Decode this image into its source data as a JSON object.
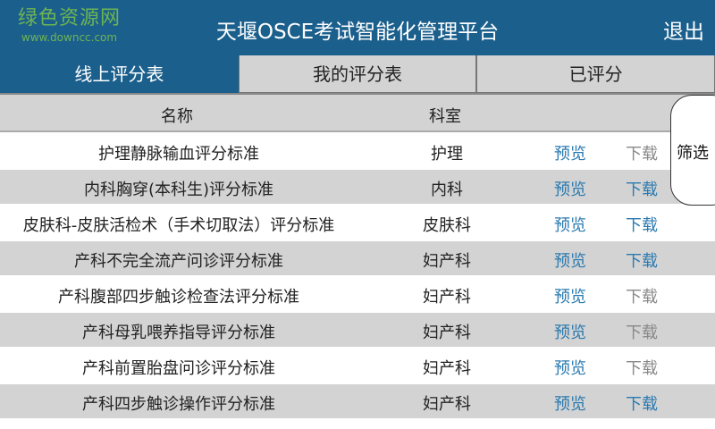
{
  "header": {
    "title": "天堰OSCE考试智能化管理平台",
    "logout": "退出"
  },
  "tabs": [
    {
      "label": "线上评分表",
      "active": true
    },
    {
      "label": "我的评分表",
      "active": false
    },
    {
      "label": "已评分",
      "active": false
    }
  ],
  "columns": {
    "name": "名称",
    "dept": "科室"
  },
  "rows": [
    {
      "name": "护理静脉输血评分标准",
      "dept": "护理",
      "preview": "预览",
      "download": "下载",
      "download_enabled": false
    },
    {
      "name": "内科胸穿(本科生)评分标准",
      "dept": "内科",
      "preview": "预览",
      "download": "下载",
      "download_enabled": true
    },
    {
      "name": "皮肤科-皮肤活检术（手术切取法）评分标准",
      "dept": "皮肤科",
      "preview": "预览",
      "download": "下载",
      "download_enabled": true
    },
    {
      "name": "产科不完全流产问诊评分标准",
      "dept": "妇产科",
      "preview": "预览",
      "download": "下载",
      "download_enabled": true
    },
    {
      "name": "产科腹部四步触诊检查法评分标准",
      "dept": "妇产科",
      "preview": "预览",
      "download": "下载",
      "download_enabled": false
    },
    {
      "name": "产科母乳喂养指导评分标准",
      "dept": "妇产科",
      "preview": "预览",
      "download": "下载",
      "download_enabled": false
    },
    {
      "name": "产科前置胎盘问诊评分标准",
      "dept": "妇产科",
      "preview": "预览",
      "download": "下载",
      "download_enabled": false
    },
    {
      "name": "产科四步触诊操作评分标准",
      "dept": "妇产科",
      "preview": "预览",
      "download": "下载",
      "download_enabled": true
    }
  ],
  "filter": {
    "label": "筛选"
  },
  "watermark": {
    "text": "绿色资源网",
    "url": "www.downcc.com"
  },
  "colors": {
    "primary": "#1b5f8c",
    "link": "#2a7ab0",
    "disabled": "#888888",
    "row_alt": "#d3d3d3"
  }
}
